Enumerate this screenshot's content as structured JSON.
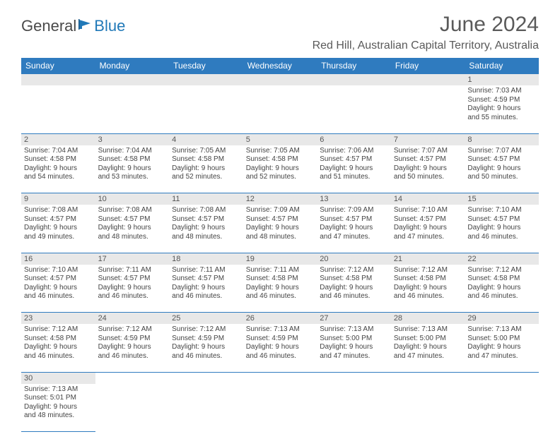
{
  "logo": {
    "text1": "General",
    "text2": "Blue"
  },
  "title": "June 2024",
  "location": "Red Hill, Australian Capital Territory, Australia",
  "day_headers": [
    "Sunday",
    "Monday",
    "Tuesday",
    "Wednesday",
    "Thursday",
    "Friday",
    "Saturday"
  ],
  "colors": {
    "header_bg": "#2f7bbf",
    "header_text": "#ffffff",
    "daynum_bg": "#e8e8e8",
    "border": "#2f7bbf",
    "text": "#444444",
    "title_text": "#5a5a5a",
    "logo_gray": "#4a4a4a",
    "logo_blue": "#2179b8"
  },
  "weeks": [
    [
      null,
      null,
      null,
      null,
      null,
      null,
      {
        "n": "1",
        "sr": "Sunrise: 7:03 AM",
        "ss": "Sunset: 4:59 PM",
        "d1": "Daylight: 9 hours",
        "d2": "and 55 minutes."
      }
    ],
    [
      {
        "n": "2",
        "sr": "Sunrise: 7:04 AM",
        "ss": "Sunset: 4:58 PM",
        "d1": "Daylight: 9 hours",
        "d2": "and 54 minutes."
      },
      {
        "n": "3",
        "sr": "Sunrise: 7:04 AM",
        "ss": "Sunset: 4:58 PM",
        "d1": "Daylight: 9 hours",
        "d2": "and 53 minutes."
      },
      {
        "n": "4",
        "sr": "Sunrise: 7:05 AM",
        "ss": "Sunset: 4:58 PM",
        "d1": "Daylight: 9 hours",
        "d2": "and 52 minutes."
      },
      {
        "n": "5",
        "sr": "Sunrise: 7:05 AM",
        "ss": "Sunset: 4:58 PM",
        "d1": "Daylight: 9 hours",
        "d2": "and 52 minutes."
      },
      {
        "n": "6",
        "sr": "Sunrise: 7:06 AM",
        "ss": "Sunset: 4:57 PM",
        "d1": "Daylight: 9 hours",
        "d2": "and 51 minutes."
      },
      {
        "n": "7",
        "sr": "Sunrise: 7:07 AM",
        "ss": "Sunset: 4:57 PM",
        "d1": "Daylight: 9 hours",
        "d2": "and 50 minutes."
      },
      {
        "n": "8",
        "sr": "Sunrise: 7:07 AM",
        "ss": "Sunset: 4:57 PM",
        "d1": "Daylight: 9 hours",
        "d2": "and 50 minutes."
      }
    ],
    [
      {
        "n": "9",
        "sr": "Sunrise: 7:08 AM",
        "ss": "Sunset: 4:57 PM",
        "d1": "Daylight: 9 hours",
        "d2": "and 49 minutes."
      },
      {
        "n": "10",
        "sr": "Sunrise: 7:08 AM",
        "ss": "Sunset: 4:57 PM",
        "d1": "Daylight: 9 hours",
        "d2": "and 48 minutes."
      },
      {
        "n": "11",
        "sr": "Sunrise: 7:08 AM",
        "ss": "Sunset: 4:57 PM",
        "d1": "Daylight: 9 hours",
        "d2": "and 48 minutes."
      },
      {
        "n": "12",
        "sr": "Sunrise: 7:09 AM",
        "ss": "Sunset: 4:57 PM",
        "d1": "Daylight: 9 hours",
        "d2": "and 48 minutes."
      },
      {
        "n": "13",
        "sr": "Sunrise: 7:09 AM",
        "ss": "Sunset: 4:57 PM",
        "d1": "Daylight: 9 hours",
        "d2": "and 47 minutes."
      },
      {
        "n": "14",
        "sr": "Sunrise: 7:10 AM",
        "ss": "Sunset: 4:57 PM",
        "d1": "Daylight: 9 hours",
        "d2": "and 47 minutes."
      },
      {
        "n": "15",
        "sr": "Sunrise: 7:10 AM",
        "ss": "Sunset: 4:57 PM",
        "d1": "Daylight: 9 hours",
        "d2": "and 46 minutes."
      }
    ],
    [
      {
        "n": "16",
        "sr": "Sunrise: 7:10 AM",
        "ss": "Sunset: 4:57 PM",
        "d1": "Daylight: 9 hours",
        "d2": "and 46 minutes."
      },
      {
        "n": "17",
        "sr": "Sunrise: 7:11 AM",
        "ss": "Sunset: 4:57 PM",
        "d1": "Daylight: 9 hours",
        "d2": "and 46 minutes."
      },
      {
        "n": "18",
        "sr": "Sunrise: 7:11 AM",
        "ss": "Sunset: 4:57 PM",
        "d1": "Daylight: 9 hours",
        "d2": "and 46 minutes."
      },
      {
        "n": "19",
        "sr": "Sunrise: 7:11 AM",
        "ss": "Sunset: 4:58 PM",
        "d1": "Daylight: 9 hours",
        "d2": "and 46 minutes."
      },
      {
        "n": "20",
        "sr": "Sunrise: 7:12 AM",
        "ss": "Sunset: 4:58 PM",
        "d1": "Daylight: 9 hours",
        "d2": "and 46 minutes."
      },
      {
        "n": "21",
        "sr": "Sunrise: 7:12 AM",
        "ss": "Sunset: 4:58 PM",
        "d1": "Daylight: 9 hours",
        "d2": "and 46 minutes."
      },
      {
        "n": "22",
        "sr": "Sunrise: 7:12 AM",
        "ss": "Sunset: 4:58 PM",
        "d1": "Daylight: 9 hours",
        "d2": "and 46 minutes."
      }
    ],
    [
      {
        "n": "23",
        "sr": "Sunrise: 7:12 AM",
        "ss": "Sunset: 4:58 PM",
        "d1": "Daylight: 9 hours",
        "d2": "and 46 minutes."
      },
      {
        "n": "24",
        "sr": "Sunrise: 7:12 AM",
        "ss": "Sunset: 4:59 PM",
        "d1": "Daylight: 9 hours",
        "d2": "and 46 minutes."
      },
      {
        "n": "25",
        "sr": "Sunrise: 7:12 AM",
        "ss": "Sunset: 4:59 PM",
        "d1": "Daylight: 9 hours",
        "d2": "and 46 minutes."
      },
      {
        "n": "26",
        "sr": "Sunrise: 7:13 AM",
        "ss": "Sunset: 4:59 PM",
        "d1": "Daylight: 9 hours",
        "d2": "and 46 minutes."
      },
      {
        "n": "27",
        "sr": "Sunrise: 7:13 AM",
        "ss": "Sunset: 5:00 PM",
        "d1": "Daylight: 9 hours",
        "d2": "and 47 minutes."
      },
      {
        "n": "28",
        "sr": "Sunrise: 7:13 AM",
        "ss": "Sunset: 5:00 PM",
        "d1": "Daylight: 9 hours",
        "d2": "and 47 minutes."
      },
      {
        "n": "29",
        "sr": "Sunrise: 7:13 AM",
        "ss": "Sunset: 5:00 PM",
        "d1": "Daylight: 9 hours",
        "d2": "and 47 minutes."
      }
    ],
    [
      {
        "n": "30",
        "sr": "Sunrise: 7:13 AM",
        "ss": "Sunset: 5:01 PM",
        "d1": "Daylight: 9 hours",
        "d2": "and 48 minutes."
      },
      null,
      null,
      null,
      null,
      null,
      null
    ]
  ]
}
